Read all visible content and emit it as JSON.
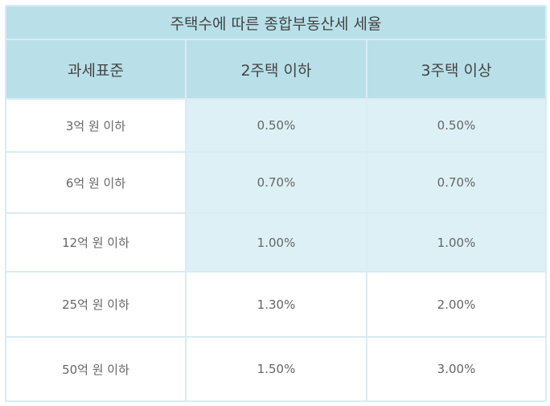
{
  "table": {
    "title": "주택수에 따른 종합부동산세 세율",
    "headers": [
      "과세표준",
      "2주택 이하",
      "3주택 이상"
    ],
    "rows": [
      {
        "bracket": "3억 원 이하",
        "two_or_less": "0.50%",
        "three_or_more": "0.50%",
        "shaded": true
      },
      {
        "bracket": "6억 원 이하",
        "two_or_less": "0.70%",
        "three_or_more": "0.70%",
        "shaded": true
      },
      {
        "bracket": "12억 원 이하",
        "two_or_less": "1.00%",
        "three_or_more": "1.00%",
        "shaded": true
      },
      {
        "bracket": "25억 원 이하",
        "two_or_less": "1.30%",
        "three_or_more": "2.00%",
        "shaded": false
      },
      {
        "bracket": "50억 원 이하",
        "two_or_less": "1.50%",
        "three_or_more": "3.00%",
        "shaded": false
      }
    ]
  },
  "colors": {
    "header_bg": "#b9e0e8",
    "shaded_bg": "#ddf0f5",
    "border": "#d8ecf2"
  }
}
